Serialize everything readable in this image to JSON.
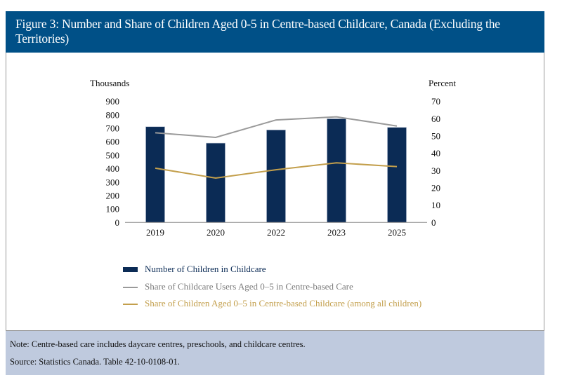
{
  "title": "Figure 3: Number and Share of Children Aged 0-5 in Centre-based Childcare, Canada (Excluding the Territories)",
  "note": "Note: Centre-based care includes daycare centres, preschools, and childcare centres.",
  "source": "Source: Statistics Canada. Table 42-10-0108-01.",
  "chart_data": {
    "type": "bar+line",
    "categories": [
      "2019",
      "2020",
      "2022",
      "2023",
      "2025"
    ],
    "left_axis": {
      "label": "Thousands",
      "ylim": [
        0,
        900
      ],
      "ticks": [
        0,
        100,
        200,
        300,
        400,
        500,
        600,
        700,
        800,
        900
      ]
    },
    "right_axis": {
      "label": "Percent",
      "ylim": [
        0,
        70
      ],
      "ticks": [
        0,
        10,
        20,
        30,
        40,
        50,
        60,
        70
      ]
    },
    "grid": false,
    "legend": "bottom",
    "series": [
      {
        "name": "Number of Children in Childcare",
        "type": "bar",
        "axis": "left",
        "color": "#0b2b55",
        "values": [
          712,
          590,
          688,
          771,
          707
        ]
      },
      {
        "name": "Share of Childcare Users Aged 0–5 in Centre-based Care",
        "type": "line",
        "axis": "right",
        "color": "#9a9a9a",
        "values": [
          51.9,
          49.2,
          59.3,
          61.1,
          55.8
        ]
      },
      {
        "name": "Share of Children Aged 0–5 in Centre-based Childcare (among all children)",
        "type": "line",
        "axis": "right",
        "color": "#c39f4c",
        "values": [
          31.4,
          25.7,
          30.5,
          34.5,
          32.3
        ]
      }
    ],
    "legend_text_colors": [
      "#0b2b55",
      "#7a7a7a",
      "#c39f4c"
    ]
  }
}
